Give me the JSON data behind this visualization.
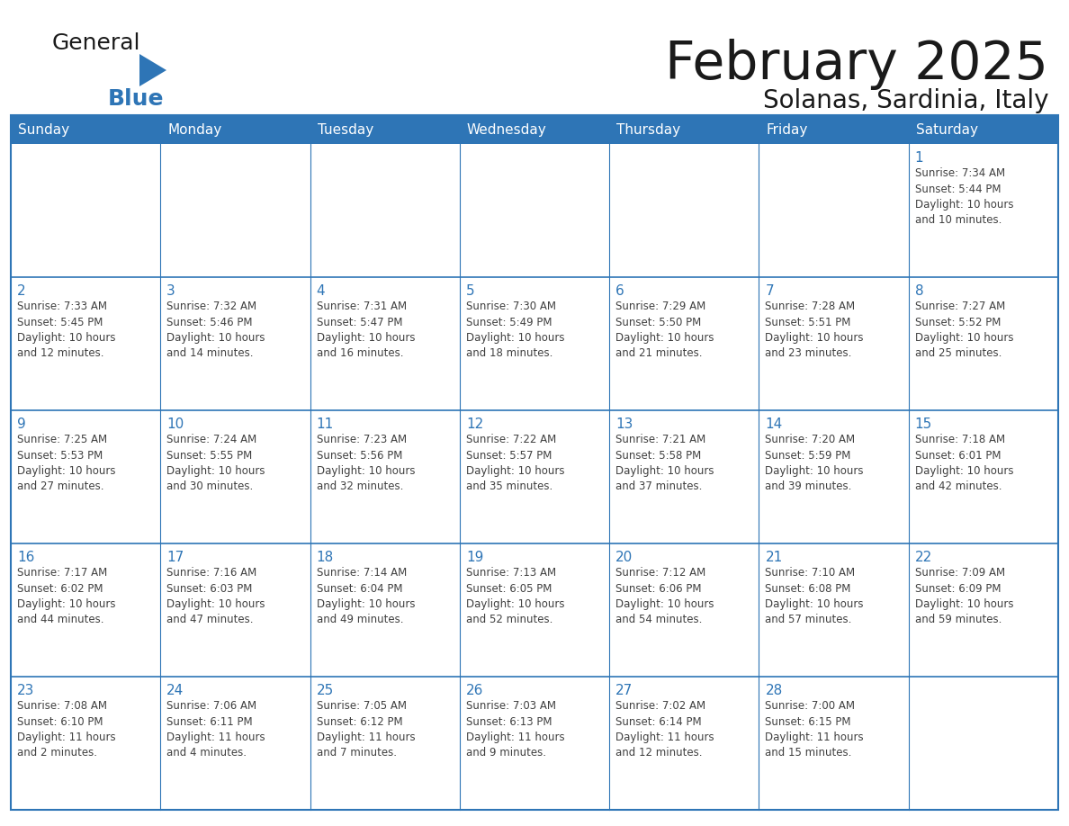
{
  "title": "February 2025",
  "subtitle": "Solanas, Sardinia, Italy",
  "header_color": "#2E75B6",
  "header_text_color": "#FFFFFF",
  "cell_border_color": "#2E75B6",
  "day_number_color": "#2E75B6",
  "info_text_color": "#404040",
  "background_color": "#FFFFFF",
  "logo_general_color": "#1a1a1a",
  "logo_blue_color": "#2E75B6",
  "logo_triangle_color": "#2E75B6",
  "title_color": "#1a1a1a",
  "days_of_week": [
    "Sunday",
    "Monday",
    "Tuesday",
    "Wednesday",
    "Thursday",
    "Friday",
    "Saturday"
  ],
  "weeks": [
    [
      {
        "day": null,
        "info": null
      },
      {
        "day": null,
        "info": null
      },
      {
        "day": null,
        "info": null
      },
      {
        "day": null,
        "info": null
      },
      {
        "day": null,
        "info": null
      },
      {
        "day": null,
        "info": null
      },
      {
        "day": 1,
        "info": "Sunrise: 7:34 AM\nSunset: 5:44 PM\nDaylight: 10 hours\nand 10 minutes."
      }
    ],
    [
      {
        "day": 2,
        "info": "Sunrise: 7:33 AM\nSunset: 5:45 PM\nDaylight: 10 hours\nand 12 minutes."
      },
      {
        "day": 3,
        "info": "Sunrise: 7:32 AM\nSunset: 5:46 PM\nDaylight: 10 hours\nand 14 minutes."
      },
      {
        "day": 4,
        "info": "Sunrise: 7:31 AM\nSunset: 5:47 PM\nDaylight: 10 hours\nand 16 minutes."
      },
      {
        "day": 5,
        "info": "Sunrise: 7:30 AM\nSunset: 5:49 PM\nDaylight: 10 hours\nand 18 minutes."
      },
      {
        "day": 6,
        "info": "Sunrise: 7:29 AM\nSunset: 5:50 PM\nDaylight: 10 hours\nand 21 minutes."
      },
      {
        "day": 7,
        "info": "Sunrise: 7:28 AM\nSunset: 5:51 PM\nDaylight: 10 hours\nand 23 minutes."
      },
      {
        "day": 8,
        "info": "Sunrise: 7:27 AM\nSunset: 5:52 PM\nDaylight: 10 hours\nand 25 minutes."
      }
    ],
    [
      {
        "day": 9,
        "info": "Sunrise: 7:25 AM\nSunset: 5:53 PM\nDaylight: 10 hours\nand 27 minutes."
      },
      {
        "day": 10,
        "info": "Sunrise: 7:24 AM\nSunset: 5:55 PM\nDaylight: 10 hours\nand 30 minutes."
      },
      {
        "day": 11,
        "info": "Sunrise: 7:23 AM\nSunset: 5:56 PM\nDaylight: 10 hours\nand 32 minutes."
      },
      {
        "day": 12,
        "info": "Sunrise: 7:22 AM\nSunset: 5:57 PM\nDaylight: 10 hours\nand 35 minutes."
      },
      {
        "day": 13,
        "info": "Sunrise: 7:21 AM\nSunset: 5:58 PM\nDaylight: 10 hours\nand 37 minutes."
      },
      {
        "day": 14,
        "info": "Sunrise: 7:20 AM\nSunset: 5:59 PM\nDaylight: 10 hours\nand 39 minutes."
      },
      {
        "day": 15,
        "info": "Sunrise: 7:18 AM\nSunset: 6:01 PM\nDaylight: 10 hours\nand 42 minutes."
      }
    ],
    [
      {
        "day": 16,
        "info": "Sunrise: 7:17 AM\nSunset: 6:02 PM\nDaylight: 10 hours\nand 44 minutes."
      },
      {
        "day": 17,
        "info": "Sunrise: 7:16 AM\nSunset: 6:03 PM\nDaylight: 10 hours\nand 47 minutes."
      },
      {
        "day": 18,
        "info": "Sunrise: 7:14 AM\nSunset: 6:04 PM\nDaylight: 10 hours\nand 49 minutes."
      },
      {
        "day": 19,
        "info": "Sunrise: 7:13 AM\nSunset: 6:05 PM\nDaylight: 10 hours\nand 52 minutes."
      },
      {
        "day": 20,
        "info": "Sunrise: 7:12 AM\nSunset: 6:06 PM\nDaylight: 10 hours\nand 54 minutes."
      },
      {
        "day": 21,
        "info": "Sunrise: 7:10 AM\nSunset: 6:08 PM\nDaylight: 10 hours\nand 57 minutes."
      },
      {
        "day": 22,
        "info": "Sunrise: 7:09 AM\nSunset: 6:09 PM\nDaylight: 10 hours\nand 59 minutes."
      }
    ],
    [
      {
        "day": 23,
        "info": "Sunrise: 7:08 AM\nSunset: 6:10 PM\nDaylight: 11 hours\nand 2 minutes."
      },
      {
        "day": 24,
        "info": "Sunrise: 7:06 AM\nSunset: 6:11 PM\nDaylight: 11 hours\nand 4 minutes."
      },
      {
        "day": 25,
        "info": "Sunrise: 7:05 AM\nSunset: 6:12 PM\nDaylight: 11 hours\nand 7 minutes."
      },
      {
        "day": 26,
        "info": "Sunrise: 7:03 AM\nSunset: 6:13 PM\nDaylight: 11 hours\nand 9 minutes."
      },
      {
        "day": 27,
        "info": "Sunrise: 7:02 AM\nSunset: 6:14 PM\nDaylight: 11 hours\nand 12 minutes."
      },
      {
        "day": 28,
        "info": "Sunrise: 7:00 AM\nSunset: 6:15 PM\nDaylight: 11 hours\nand 15 minutes."
      },
      {
        "day": null,
        "info": null
      }
    ]
  ]
}
